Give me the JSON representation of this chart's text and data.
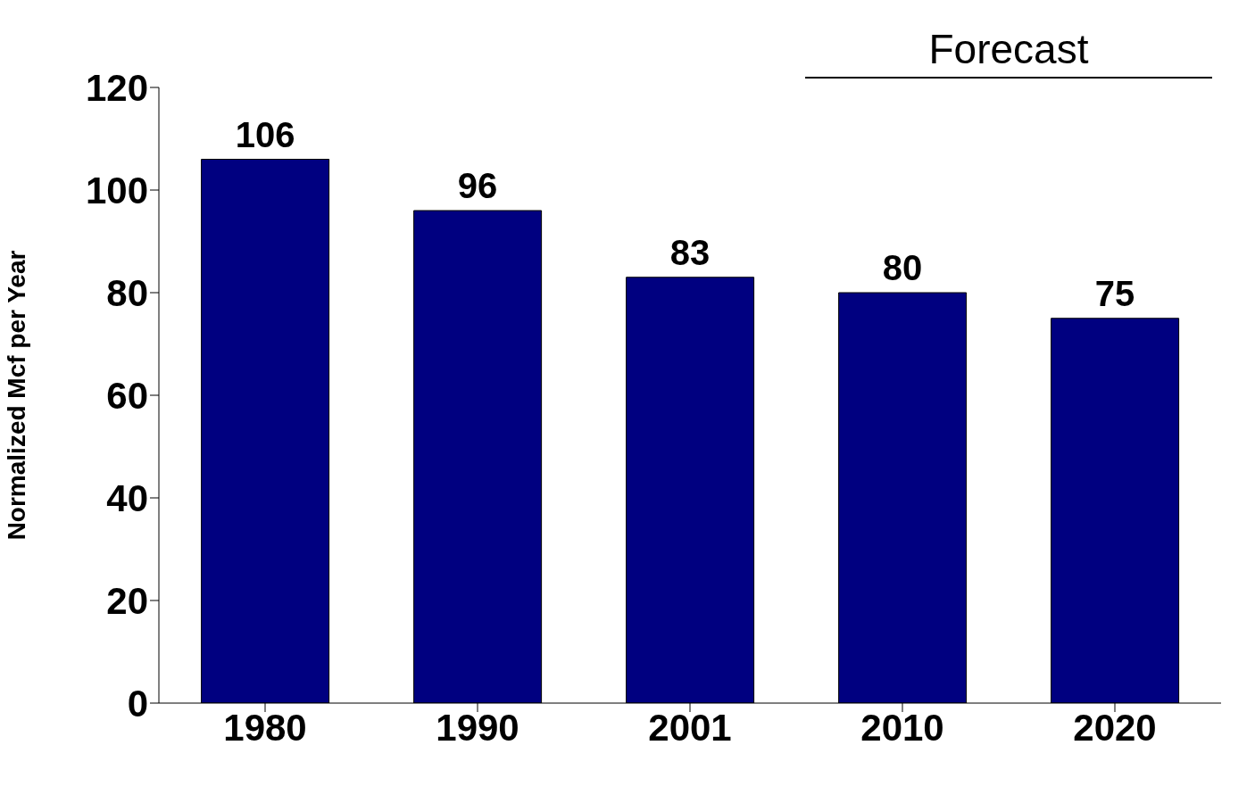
{
  "chart_data": {
    "type": "bar",
    "ylabel": "Normalized Mcf per Year",
    "categories": [
      "1980",
      "1990",
      "2001",
      "2010",
      "2020"
    ],
    "values": [
      106,
      96,
      83,
      80,
      75
    ],
    "color": "#000080",
    "ylim": [
      0,
      120
    ],
    "yticks": [
      0,
      20,
      40,
      60,
      80,
      100,
      120
    ],
    "data_labels": true,
    "grid": false,
    "annotations": [
      "Forecast"
    ]
  }
}
